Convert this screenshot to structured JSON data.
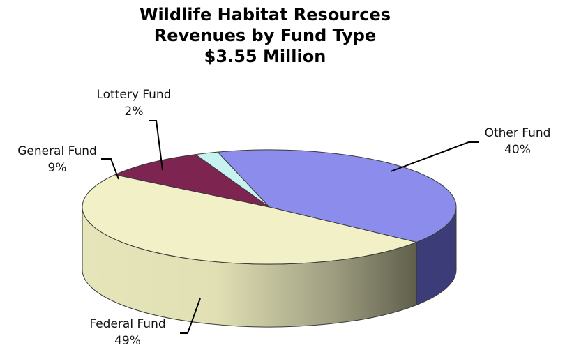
{
  "chart_data": {
    "type": "pie",
    "title": [
      "Wildlife Habitat Resources",
      "Revenues by Fund Type",
      "$3.55 Million"
    ],
    "style": "3d",
    "slices": [
      {
        "name": "Other Fund",
        "value": 40,
        "label": "40%",
        "color": "#8c8cec",
        "side_color": "#3c3c78"
      },
      {
        "name": "Federal Fund",
        "value": 49,
        "label": "49%",
        "color": "#f1f0c6",
        "side_color": "#6a6a54"
      },
      {
        "name": "General Fund",
        "value": 9,
        "label": "9%",
        "color": "#7d2450",
        "side_color": "#5a1838"
      },
      {
        "name": "Lottery Fund",
        "value": 2,
        "label": "2%",
        "color": "#c6f3ef",
        "side_color": "#8fb9b4"
      }
    ]
  }
}
